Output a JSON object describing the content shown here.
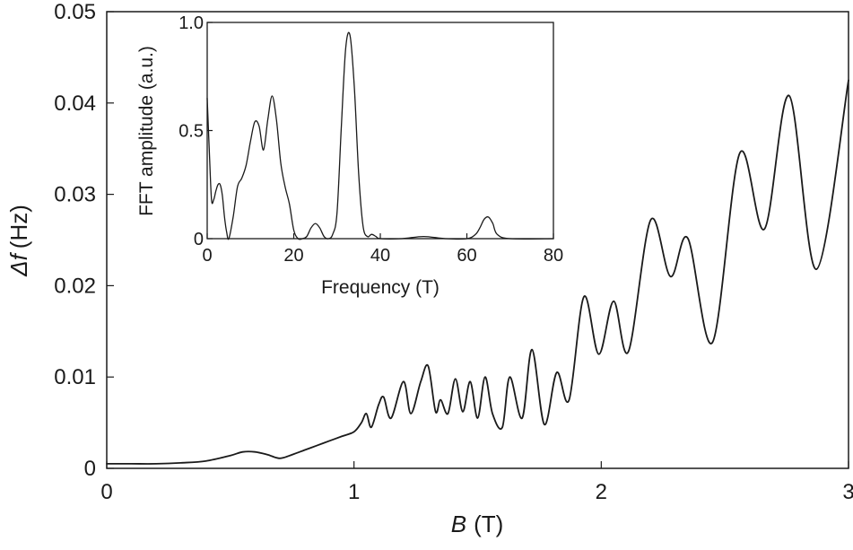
{
  "chart_data": [
    {
      "type": "line",
      "title": "",
      "xlabel_symbol": "B",
      "xlabel_unit": "(T)",
      "ylabel_symbol": "Δf",
      "ylabel_unit": "(Hz)",
      "xlim": [
        0,
        3
      ],
      "ylim": [
        0,
        0.05
      ],
      "xticks": [
        0,
        1,
        2,
        3
      ],
      "xtick_labels": [
        "0",
        "1",
        "2",
        "3"
      ],
      "yticks": [
        0,
        0.01,
        0.02,
        0.03,
        0.04,
        0.05
      ],
      "ytick_labels": [
        "0",
        "0.01",
        "0.02",
        "0.03",
        "0.04",
        "0.05"
      ],
      "grid": false,
      "legend": "none",
      "line_color": "#1a1a1a",
      "series": [
        {
          "x": [
            0.0,
            0.1,
            0.2,
            0.3,
            0.4,
            0.5,
            0.55,
            0.6,
            0.65,
            0.7,
            0.75,
            0.8,
            0.85,
            0.9,
            0.95,
            1.0,
            1.03,
            1.05,
            1.07,
            1.1,
            1.12,
            1.15,
            1.2,
            1.23,
            1.27,
            1.3,
            1.33,
            1.35,
            1.38,
            1.41,
            1.44,
            1.47,
            1.5,
            1.53,
            1.56,
            1.6,
            1.63,
            1.68,
            1.72,
            1.77,
            1.82,
            1.87,
            1.93,
            1.99,
            2.05,
            2.11,
            2.2,
            2.28,
            2.35,
            2.45,
            2.56,
            2.66,
            2.76,
            2.87,
            3.0
          ],
          "y": [
            0.0005,
            0.0005,
            0.0005,
            0.0006,
            0.0008,
            0.0014,
            0.0018,
            0.0018,
            0.0015,
            0.0011,
            0.0015,
            0.002,
            0.0025,
            0.003,
            0.0035,
            0.004,
            0.005,
            0.006,
            0.0045,
            0.007,
            0.0078,
            0.0055,
            0.0095,
            0.006,
            0.0095,
            0.0112,
            0.0062,
            0.0075,
            0.006,
            0.0098,
            0.0062,
            0.0095,
            0.0055,
            0.01,
            0.006,
            0.0045,
            0.01,
            0.0055,
            0.013,
            0.0048,
            0.0105,
            0.0075,
            0.0188,
            0.0125,
            0.0183,
            0.0128,
            0.0272,
            0.021,
            0.0252,
            0.0138,
            0.0345,
            0.0262,
            0.0408,
            0.0218,
            0.0425
          ]
        }
      ]
    },
    {
      "type": "line",
      "title": "",
      "xlabel": "Frequency (T)",
      "ylabel": "FFT amplitude (a.u.)",
      "xlim": [
        0,
        80
      ],
      "ylim": [
        0,
        1.0
      ],
      "xticks": [
        0,
        20,
        40,
        60,
        80
      ],
      "xtick_labels": [
        "0",
        "20",
        "40",
        "60",
        "80"
      ],
      "yticks": [
        0,
        0.5,
        1.0
      ],
      "ytick_labels": [
        "0",
        "0.5",
        "1.0"
      ],
      "grid": false,
      "legend": "none",
      "line_color": "#1a1a1a",
      "series": [
        {
          "x": [
            0,
            0.5,
            1,
            1.5,
            2,
            2.5,
            3,
            3.5,
            4,
            4.5,
            5,
            6,
            7,
            8,
            9,
            10,
            11,
            12,
            13,
            14,
            15,
            16,
            17,
            18,
            19,
            20,
            21,
            22,
            23,
            24,
            25,
            26,
            27,
            28,
            29,
            30,
            31,
            32,
            33,
            34,
            35,
            36,
            37,
            38,
            39,
            40,
            45,
            50,
            55,
            60,
            62,
            63,
            64,
            65,
            66,
            67,
            70,
            80
          ],
          "y": [
            0.65,
            0.4,
            0.18,
            0.18,
            0.22,
            0.25,
            0.25,
            0.2,
            0.1,
            0.03,
            0.0,
            0.1,
            0.24,
            0.28,
            0.34,
            0.45,
            0.54,
            0.52,
            0.41,
            0.55,
            0.66,
            0.55,
            0.35,
            0.24,
            0.16,
            0.04,
            0.0,
            0.0,
            0.01,
            0.05,
            0.07,
            0.05,
            0.01,
            0.0,
            0.02,
            0.12,
            0.52,
            0.88,
            0.94,
            0.7,
            0.3,
            0.06,
            0.01,
            0.02,
            0.01,
            0.0,
            0.0,
            0.01,
            0.0,
            0.0,
            0.02,
            0.05,
            0.09,
            0.1,
            0.07,
            0.02,
            0.0,
            0.0
          ]
        }
      ]
    }
  ]
}
